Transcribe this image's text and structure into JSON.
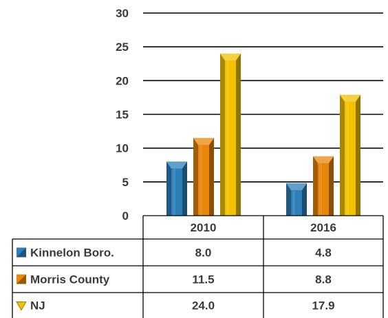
{
  "chart_data": {
    "type": "bar",
    "categories": [
      "2010",
      "2016"
    ],
    "series": [
      {
        "name": "Kinnelon Boro.",
        "values": [
          8.0,
          4.8
        ],
        "labels": [
          "8.0",
          "4.8"
        ],
        "color": "#2e7fb8"
      },
      {
        "name": "Morris County",
        "values": [
          11.5,
          8.8
        ],
        "labels": [
          "11.5",
          "8.8"
        ],
        "color": "#e8860a"
      },
      {
        "name": "NJ",
        "values": [
          24.0,
          17.9
        ],
        "labels": [
          "24.0",
          "17.9"
        ],
        "color": "#f2c200"
      }
    ],
    "yticks": [
      "0",
      "5",
      "10",
      "15",
      "20",
      "25",
      "30"
    ],
    "ylim": [
      0,
      30
    ],
    "gridlines": true,
    "legend": "data-table"
  }
}
